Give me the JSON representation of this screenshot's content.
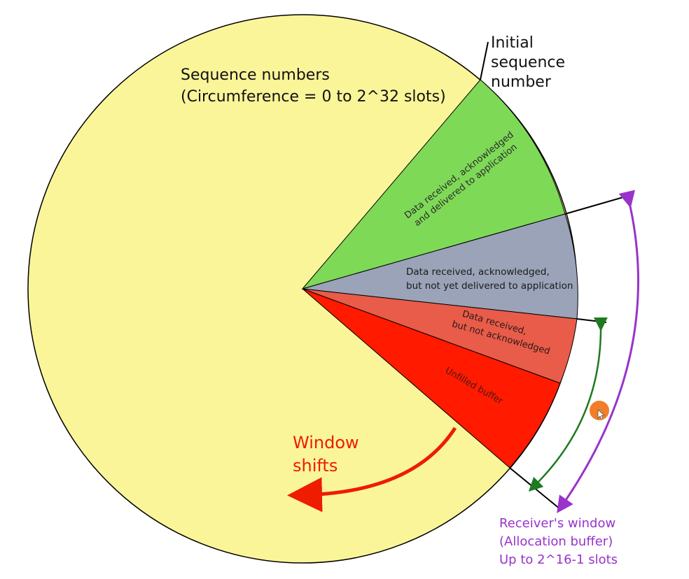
{
  "title_lines": [
    "Sequence numbers",
    "(Circumference = 0 to 2^32 slots)"
  ],
  "isn_lines": [
    "Initial",
    "sequence",
    "number"
  ],
  "segments": {
    "delivered": [
      "Data received, acknowledged",
      "and delivered to application"
    ],
    "not_delivered": [
      "Data received, acknowledged,",
      "but not yet delivered to application"
    ],
    "not_acked": [
      "Data received,",
      "but not acknowledged"
    ],
    "unfilled": "Unfilled buffer"
  },
  "window_shift_lines": [
    "Window",
    "shifts"
  ],
  "receiver_window_lines": [
    "Receiver's window",
    "(Allocation buffer)",
    "Up to 2^16-1 slots"
  ],
  "colors": {
    "circle": "#fbf59a",
    "delivered": "#7ed957",
    "not_delivered": "#9aa3b8",
    "not_acked": "#e85c49",
    "unfilled": "#ff1a00",
    "window_arrow": "#ee1c00",
    "receiver_arrow": "#9933cc",
    "inner_arrow": "#1e7a1e",
    "receiver_text": "#9933cc",
    "cursor": "#f07e2a"
  }
}
